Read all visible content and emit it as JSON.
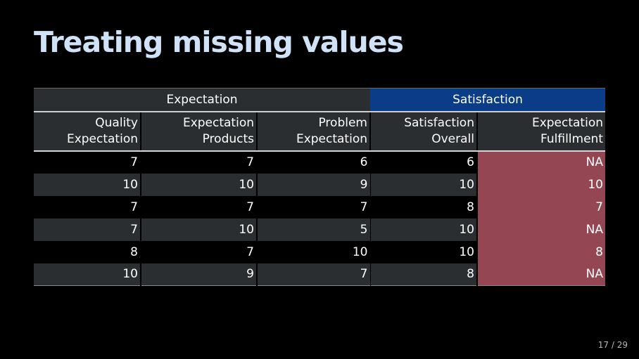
{
  "slide": {
    "title": "Treating missing values"
  },
  "table": {
    "groups": [
      {
        "label": "Expectation"
      },
      {
        "label": "Satisfaction"
      }
    ],
    "columns": [
      {
        "line1": "Quality",
        "line2": "Expectation"
      },
      {
        "line1": "Expectation",
        "line2": "Products"
      },
      {
        "line1": "Problem",
        "line2": "Expectation"
      },
      {
        "line1": "Satisfaction",
        "line2": "Overall"
      },
      {
        "line1": "Expectation",
        "line2": "Fulfillment"
      }
    ],
    "rows": [
      [
        "7",
        "7",
        "6",
        "6",
        "NA"
      ],
      [
        "10",
        "10",
        "9",
        "10",
        "10"
      ],
      [
        "7",
        "7",
        "7",
        "8",
        "7"
      ],
      [
        "7",
        "10",
        "5",
        "10",
        "NA"
      ],
      [
        "8",
        "7",
        "10",
        "10",
        "8"
      ],
      [
        "10",
        "9",
        "7",
        "8",
        "NA"
      ]
    ],
    "highlighted_column": "Expectation Fulfillment"
  },
  "footer": {
    "page": "17 / 29"
  },
  "colors": {
    "title": "#cfe2f8",
    "satisfaction_group": "#0a3c88",
    "highlight_column": "#944753",
    "row_stripe": "#2b2e31",
    "background": "#000000"
  }
}
